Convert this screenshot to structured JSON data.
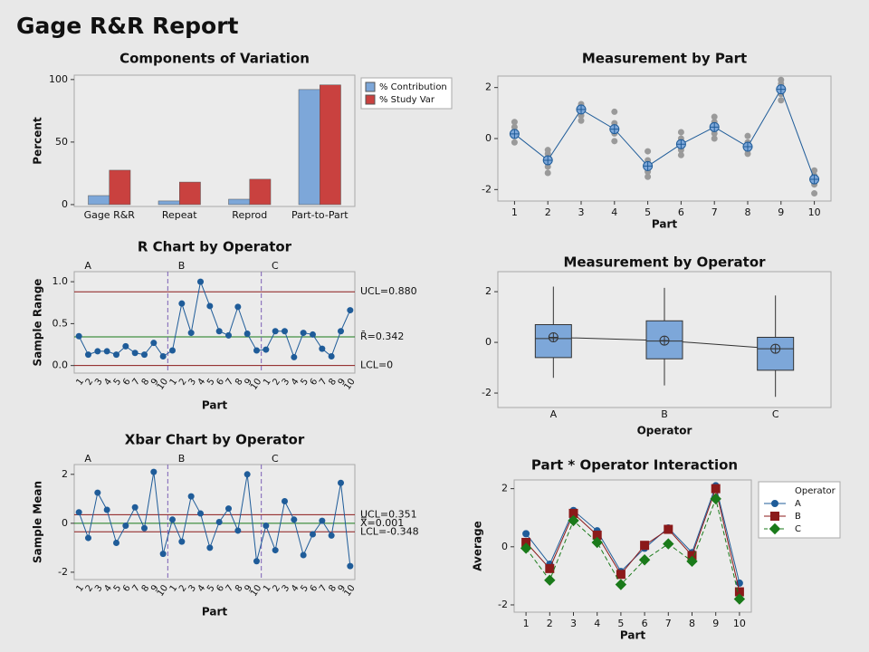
{
  "title": "Gage R&R Report",
  "chart_data": [
    {
      "type": "bar",
      "title": "Components of Variation",
      "ylabel": "Percent",
      "categories": [
        "Gage R&R",
        "Repeat",
        "Reprod",
        "Part-to-Part"
      ],
      "series": [
        {
          "name": "% Contribution",
          "color": "#7da7d9",
          "values": [
            7.2,
            2.9,
            4.3,
            92
          ]
        },
        {
          "name": "% Study Var",
          "color": "#c9413f",
          "values": [
            27.5,
            18,
            20.3,
            95.7
          ]
        }
      ],
      "ylim": [
        -1.5,
        103.5
      ],
      "yticks": [
        0,
        50,
        100
      ]
    },
    {
      "type": "scatter",
      "title": "Measurement by Part",
      "xlabel": "Part",
      "x": [
        1,
        2,
        3,
        4,
        5,
        6,
        7,
        8,
        9,
        10
      ],
      "values": [
        [
          0.65,
          0.45,
          0.3,
          0.1,
          -0.15
        ],
        [
          -0.45,
          -0.6,
          -0.9,
          -1.1,
          -1.35
        ],
        [
          1.35,
          1.25,
          1.1,
          0.9,
          0.7
        ],
        [
          1.05,
          0.6,
          0.4,
          0.2,
          -0.1
        ],
        [
          -0.5,
          -0.85,
          -1.1,
          -1.3,
          -1.5
        ],
        [
          0.25,
          0,
          -0.2,
          -0.45,
          -0.65
        ],
        [
          0.85,
          0.65,
          0.45,
          0.2,
          0
        ],
        [
          0.1,
          -0.15,
          -0.3,
          -0.45,
          -0.6
        ],
        [
          2.3,
          2.15,
          1.95,
          1.75,
          1.5
        ],
        [
          -1.25,
          -1.45,
          -1.6,
          -1.8,
          -2.15
        ]
      ],
      "means": [
        0.18,
        -0.85,
        1.14,
        0.37,
        -1.08,
        -0.22,
        0.45,
        -0.32,
        1.93,
        -1.6
      ],
      "color": "#1f5c99",
      "xlim": [
        0.5,
        10.5
      ],
      "xticks": [
        1,
        2,
        3,
        4,
        5,
        6,
        7,
        8,
        9,
        10
      ],
      "ylim": [
        -2.45,
        2.45
      ],
      "yticks": [
        2,
        0,
        -2
      ]
    },
    {
      "type": "control",
      "title": "R Chart by Operator",
      "xlabel": "Part",
      "ylabel": "Sample Range",
      "categories": [
        "1",
        "2",
        "3",
        "4",
        "5",
        "6",
        "7",
        "8",
        "9",
        "10"
      ],
      "series": [
        {
          "name": "A",
          "values": [
            0.35,
            0.13,
            0.17,
            0.17,
            0.13,
            0.23,
            0.15,
            0.13,
            0.27,
            0.11
          ]
        },
        {
          "name": "B",
          "values": [
            0.18,
            0.74,
            0.39,
            1.0,
            0.71,
            0.41,
            0.36,
            0.7,
            0.38,
            0.18
          ]
        },
        {
          "name": "C",
          "values": [
            0.19,
            0.41,
            0.41,
            0.1,
            0.39,
            0.37,
            0.2,
            0.11,
            0.41,
            0.66
          ]
        }
      ],
      "color": "#1f5c99",
      "ylim": [
        -0.09,
        1.12
      ],
      "yticks": [
        {
          "value": 0,
          "label": "0.0"
        },
        0.5,
        {
          "value": 1,
          "label": "1.0"
        }
      ],
      "control_lines": [
        {
          "value": 0.88,
          "label": "UCL=0.880",
          "color": "#8b1a1a"
        },
        {
          "value": 0.342,
          "label": "R̄=0.342",
          "color": "#1a7a1a"
        },
        {
          "value": 0,
          "label": "LCL=0",
          "color": "#8b1a1a"
        }
      ]
    },
    {
      "type": "control",
      "title": "Xbar Chart by Operator",
      "xlabel": "Part",
      "ylabel": "Sample Mean",
      "categories": [
        "1",
        "2",
        "3",
        "4",
        "5",
        "6",
        "7",
        "8",
        "9",
        "10"
      ],
      "series": [
        {
          "name": "A",
          "values": [
            0.45,
            -0.6,
            1.25,
            0.55,
            -0.8,
            -0.1,
            0.65,
            -0.2,
            2.1,
            -1.25
          ]
        },
        {
          "name": "B",
          "values": [
            0.15,
            -0.75,
            1.1,
            0.4,
            -1.0,
            0.05,
            0.6,
            -0.3,
            2.0,
            -1.55
          ]
        },
        {
          "name": "C",
          "values": [
            -0.1,
            -1.1,
            0.9,
            0.15,
            -1.3,
            -0.45,
            0.1,
            -0.5,
            1.65,
            -1.75
          ]
        }
      ],
      "color": "#1f5c99",
      "ylim": [
        -2.3,
        2.4
      ],
      "yticks": [
        2,
        0,
        -2
      ],
      "control_lines": [
        {
          "value": 0.351,
          "label": "UCL=0.351",
          "color": "#8b1a1a"
        },
        {
          "value": 0.001,
          "label": "X̿=0.001",
          "color": "#1a7a1a"
        },
        {
          "value": -0.348,
          "label": "LCL=-0.348",
          "color": "#8b1a1a"
        }
      ]
    },
    {
      "type": "box",
      "title": "Measurement by Operator",
      "xlabel": "Operator",
      "categories": [
        "A",
        "B",
        "C"
      ],
      "min": [
        -1.4,
        -1.7,
        -2.15
      ],
      "q1": [
        -0.6,
        -0.65,
        -1.1
      ],
      "median": [
        0.15,
        0.05,
        -0.25
      ],
      "q3": [
        0.7,
        0.85,
        0.2
      ],
      "max": [
        2.2,
        2.15,
        1.85
      ],
      "means": [
        0.2,
        0.07,
        -0.25
      ],
      "color": "#7da7d9",
      "ylim": [
        -2.57,
        2.79
      ],
      "yticks": [
        2,
        0,
        -2
      ]
    },
    {
      "type": "line",
      "title": "Part * Operator Interaction",
      "xlabel": "Part",
      "ylabel": "Average",
      "legend_title": "Operator",
      "x": [
        1,
        2,
        3,
        4,
        5,
        6,
        7,
        8,
        9,
        10
      ],
      "series": [
        {
          "name": "A",
          "color": "#1f5c99",
          "marker": "circle",
          "dash": "solid",
          "values": [
            0.45,
            -0.6,
            1.25,
            0.55,
            -0.85,
            -0.05,
            0.65,
            -0.2,
            2.1,
            -1.25
          ]
        },
        {
          "name": "B",
          "color": "#8b1a1a",
          "marker": "square",
          "dash": "solid",
          "values": [
            0.15,
            -0.75,
            1.15,
            0.4,
            -0.95,
            0.05,
            0.6,
            -0.3,
            2.0,
            -1.55
          ]
        },
        {
          "name": "C",
          "color": "#1a7a1a",
          "marker": "diamond",
          "dash": "dashed",
          "values": [
            -0.05,
            -1.15,
            0.9,
            0.15,
            -1.3,
            -0.45,
            0.1,
            -0.5,
            1.65,
            -1.8
          ]
        }
      ],
      "xlim": [
        0.5,
        10.5
      ],
      "xticks": [
        1,
        2,
        3,
        4,
        5,
        6,
        7,
        8,
        9,
        10
      ],
      "ylim": [
        -2.25,
        2.3
      ],
      "yticks": [
        2,
        0,
        -2
      ]
    }
  ]
}
